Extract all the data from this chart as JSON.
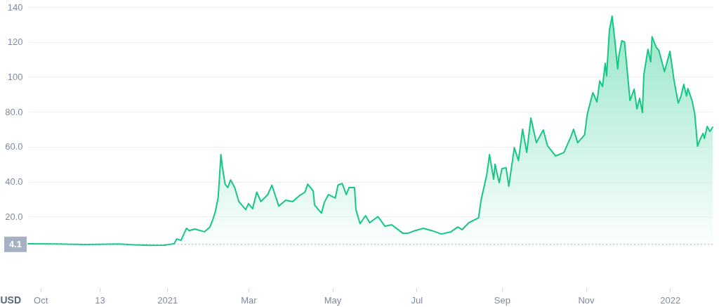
{
  "chart_data": {
    "type": "area",
    "ylabel": "USD",
    "x": [
      "2020-09-22",
      "2020-10-12",
      "2020-11-02",
      "2020-11-12",
      "2020-11-27",
      "2020-12-08",
      "2020-12-20",
      "2020-12-30",
      "2021-01-02",
      "2021-01-06",
      "2021-01-08",
      "2021-01-11",
      "2021-01-15",
      "2021-01-17",
      "2021-01-21",
      "2021-01-28",
      "2021-02-01",
      "2021-02-03",
      "2021-02-05",
      "2021-02-07",
      "2021-02-09",
      "2021-02-10",
      "2021-02-12",
      "2021-02-14",
      "2021-02-16",
      "2021-02-19",
      "2021-02-22",
      "2021-02-27",
      "2021-03-01",
      "2021-03-04",
      "2021-03-07",
      "2021-03-10",
      "2021-03-15",
      "2021-03-18",
      "2021-03-23",
      "2021-03-28",
      "2021-04-02",
      "2021-04-07",
      "2021-04-11",
      "2021-04-13",
      "2021-04-17",
      "2021-04-18",
      "2021-04-23",
      "2021-04-25",
      "2021-04-28",
      "2021-05-03",
      "2021-05-05",
      "2021-05-08",
      "2021-05-11",
      "2021-05-13",
      "2021-05-17",
      "2021-05-18",
      "2021-05-21",
      "2021-05-25",
      "2021-05-28",
      "2021-06-03",
      "2021-06-08",
      "2021-06-13",
      "2021-06-21",
      "2021-06-25",
      "2021-06-30",
      "2021-07-06",
      "2021-07-12",
      "2021-07-19",
      "2021-07-26",
      "2021-07-31",
      "2021-08-03",
      "2021-08-08",
      "2021-08-15",
      "2021-08-17",
      "2021-08-21",
      "2021-08-23",
      "2021-08-26",
      "2021-08-27",
      "2021-08-30",
      "2021-09-01",
      "2021-09-04",
      "2021-09-06",
      "2021-09-10",
      "2021-09-13",
      "2021-09-16",
      "2021-09-19",
      "2021-09-22",
      "2021-09-26",
      "2021-10-01",
      "2021-10-04",
      "2021-10-10",
      "2021-10-16",
      "2021-10-21",
      "2021-10-23",
      "2021-10-26",
      "2021-10-31",
      "2021-11-02",
      "2021-11-06",
      "2021-11-09",
      "2021-11-11",
      "2021-11-13",
      "2021-11-15",
      "2021-11-16",
      "2021-11-18",
      "2021-11-20",
      "2021-11-22",
      "2021-11-24",
      "2021-11-25",
      "2021-11-27",
      "2021-11-29",
      "2021-12-03",
      "2021-12-06",
      "2021-12-08",
      "2021-12-10",
      "2021-12-12",
      "2021-12-13",
      "2021-12-16",
      "2021-12-18",
      "2021-12-19",
      "2021-12-22",
      "2021-12-24",
      "2021-12-28",
      "2022-01-01",
      "2022-01-04",
      "2022-01-07",
      "2022-01-09",
      "2022-01-11",
      "2022-01-13",
      "2022-01-14",
      "2022-01-17",
      "2022-01-19",
      "2022-01-21",
      "2022-01-23",
      "2022-01-25",
      "2022-01-26",
      "2022-01-28",
      "2022-01-30",
      "2022-02-01"
    ],
    "series": [
      {
        "color": "#16c784",
        "values": [
          4.4,
          4.3,
          4.0,
          4.1,
          4.3,
          3.8,
          3.5,
          3.6,
          4.0,
          4.4,
          7.2,
          6.4,
          13.3,
          12,
          12.9,
          11.3,
          14,
          18,
          23,
          31,
          55.5,
          48.7,
          38.6,
          36.6,
          41,
          36.6,
          28.6,
          24,
          27.4,
          24.5,
          34,
          28.6,
          32.6,
          38,
          26,
          29.4,
          28.6,
          32,
          34,
          38.6,
          34.6,
          26.6,
          22,
          28,
          32.6,
          30.6,
          38,
          39,
          32.6,
          36.6,
          36.6,
          24,
          16,
          20.5,
          16.5,
          20,
          14.5,
          15.3,
          10.5,
          10.5,
          12,
          13.3,
          12,
          10,
          11.3,
          14,
          12.5,
          16.5,
          19.3,
          30,
          44,
          55.5,
          41.4,
          50,
          39.4,
          47.5,
          48,
          37.4,
          59.5,
          52,
          70,
          56.7,
          76.4,
          62.3,
          69.6,
          60.7,
          54.7,
          56.7,
          65.6,
          70,
          62.3,
          66.8,
          78.8,
          91,
          85.7,
          97.7,
          94.5,
          107.8,
          100.6,
          126.7,
          134.8,
          120.7,
          104.6,
          112.6,
          120.7,
          120,
          86.5,
          93,
          81.7,
          87.7,
          79.6,
          101,
          115.8,
          108.6,
          123,
          117,
          115,
          103,
          114.6,
          97.7,
          85,
          89,
          95.7,
          89,
          93.3,
          86.5,
          78.8,
          60.3,
          64.4,
          67.6,
          64.8,
          71.6,
          68.8,
          71.2
        ]
      }
    ],
    "xlim": [
      "2020-09-22",
      "2022-02-01"
    ],
    "xticks": [
      {
        "value": "2020-10-01",
        "label": "Oct"
      },
      {
        "value": "2020-11-13",
        "label": "13"
      },
      {
        "value": "2021-01-01",
        "label": "2021"
      },
      {
        "value": "2021-03-01",
        "label": "Mar"
      },
      {
        "value": "2021-05-01",
        "label": "May"
      },
      {
        "value": "2021-07-01",
        "label": "Jul"
      },
      {
        "value": "2021-09-01",
        "label": "Sep"
      },
      {
        "value": "2021-11-01",
        "label": "Nov"
      },
      {
        "value": "2022-01-01",
        "label": "2022"
      }
    ],
    "ylim": [
      0,
      140
    ],
    "yticks": [
      {
        "value": 20,
        "label": "20.0"
      },
      {
        "value": 40,
        "label": "40.0"
      },
      {
        "value": 60,
        "label": "60.0"
      },
      {
        "value": 80,
        "label": "80.0"
      },
      {
        "value": 100,
        "label": "100"
      },
      {
        "value": 120,
        "label": "120"
      },
      {
        "value": 140,
        "label": "140"
      }
    ],
    "grid": "y",
    "ref_lines": [
      {
        "axis": "y",
        "value": 4.1,
        "label": "4.1",
        "line_style": "dotted",
        "color": "#a6b0c3"
      }
    ]
  }
}
